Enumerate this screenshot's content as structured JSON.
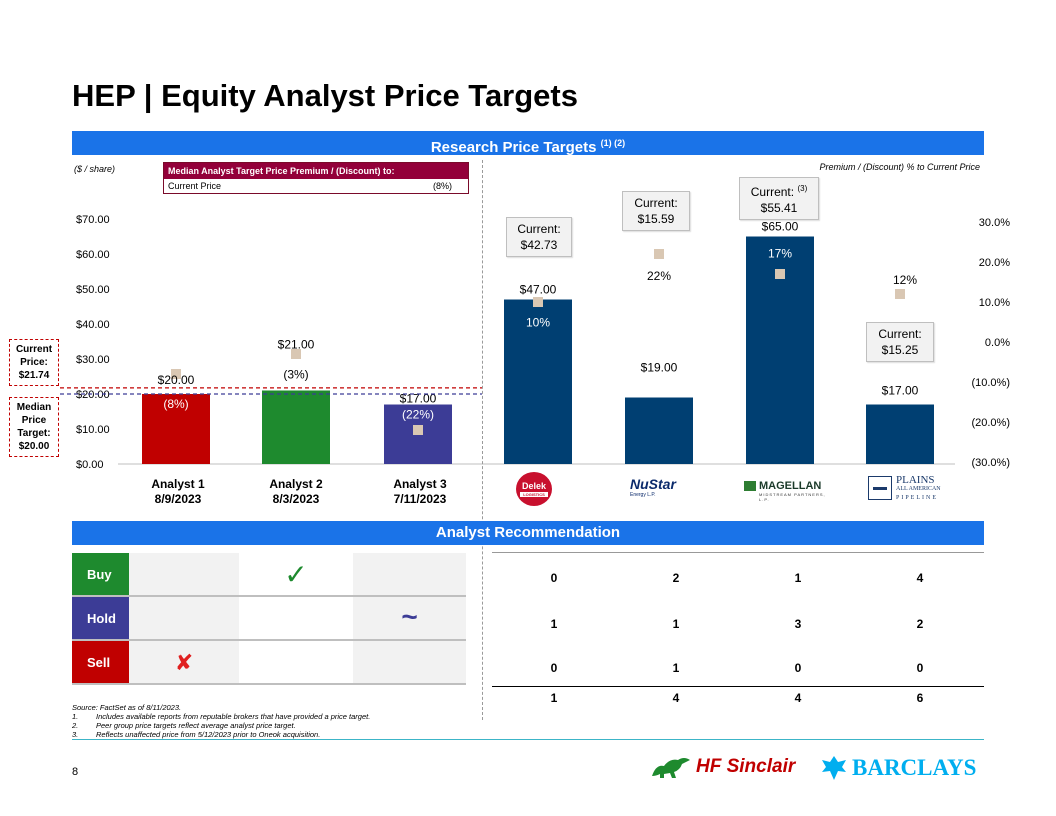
{
  "page": {
    "title": "HEP | Equity Analyst Price Targets",
    "section1_title": "Research Price Targets",
    "section1_sup": "(1) (2)",
    "section2_title": "Analyst Recommendation",
    "page_number": "8"
  },
  "chart_data": {
    "type": "bar",
    "left_axis_label": "($ / share)",
    "right_axis_label": "Premium / (Discount) % to Current Price",
    "left_ticks": [
      "$70.00",
      "$60.00",
      "$50.00",
      "$40.00",
      "$30.00",
      "$20.00",
      "$10.00",
      "$0.00"
    ],
    "right_ticks": [
      "30.0%",
      "20.0%",
      "10.0%",
      "0.0%",
      "(10.0%)",
      "(20.0%)",
      "(30.0%)"
    ],
    "ylim": [
      0,
      70
    ],
    "y2lim": [
      -30,
      30
    ],
    "analysts": [
      {
        "name": "Analyst 1",
        "date": "8/9/2023",
        "value": 20,
        "value_label": "$20.00",
        "premium": -8,
        "premium_label": "(8%)",
        "color": "#c00000"
      },
      {
        "name": "Analyst 2",
        "date": "8/3/2023",
        "value": 21,
        "value_label": "$21.00",
        "premium": -3,
        "premium_label": "(3%)",
        "color": "#1e8a2e"
      },
      {
        "name": "Analyst 3",
        "date": "7/11/2023",
        "value": 17,
        "value_label": "$17.00",
        "premium": -22,
        "premium_label": "(22%)",
        "color": "#3c3c96"
      }
    ],
    "peers": [
      {
        "logo": "Delek",
        "logo_sub": "LOGISTICS",
        "value": 47,
        "value_label": "$47.00",
        "premium": 10,
        "premium_label": "10%",
        "current_label": "Current:",
        "current_price": "$42.73",
        "sup": ""
      },
      {
        "logo": "NuStar",
        "logo_sub": "Energy L.P.",
        "value": 19,
        "value_label": "$19.00",
        "premium": 22,
        "premium_label": "22%",
        "current_label": "Current:",
        "current_price": "$15.59",
        "sup": ""
      },
      {
        "logo": "MAGELLAN",
        "logo_sub": "MIDSTREAM PARTNERS, L.P.",
        "value": 65,
        "value_label": "$65.00",
        "premium": 17,
        "premium_label": "17%",
        "current_label": "Current:",
        "current_price": "$55.41",
        "sup": "(3)"
      },
      {
        "logo": "PLAINS",
        "logo_sub": "ALL AMERICAN",
        "logo_sub2": "PIPELINE",
        "value": 17,
        "value_label": "$17.00",
        "premium": 12,
        "premium_label": "12%",
        "current_label": "Current:",
        "current_price": "$15.25",
        "sup": ""
      }
    ],
    "current_price_line": 21.74,
    "median_line": 20.0,
    "bar_color_peers": "#003f72",
    "marker_color": "#d9c7b3"
  },
  "median_box": {
    "header": "Median Analyst Target Price Premium / (Discount) to:",
    "row_label": "Current Price",
    "row_value": "(8%)"
  },
  "side": {
    "current_label": "Current Price:",
    "current_value": "$21.74",
    "median_label": "Median Price Target:",
    "median_value": "$20.00"
  },
  "recommendation": {
    "labels": [
      {
        "label": "Buy",
        "color": "#1e8a2e"
      },
      {
        "label": "Hold",
        "color": "#3c3c96"
      },
      {
        "label": "Sell",
        "color": "#c00000"
      }
    ],
    "buy_mark": "✓",
    "hold_mark": "~",
    "sell_mark": "✘",
    "peer_counts": [
      [
        "0",
        "2",
        "1",
        "4"
      ],
      [
        "1",
        "1",
        "3",
        "2"
      ],
      [
        "0",
        "1",
        "0",
        "0"
      ],
      [
        "1",
        "4",
        "4",
        "6"
      ]
    ]
  },
  "footnotes": {
    "source": "Source: FactSet as of 8/11/2023.",
    "notes": [
      {
        "num": "1.",
        "text": "Includes available reports from reputable brokers that have provided a price target."
      },
      {
        "num": "2.",
        "text": "Peer group price targets reflect average analyst price target."
      },
      {
        "num": "3.",
        "text": "Reflects unaffected price from 5/12/2023 prior to Oneok acquisition."
      }
    ]
  },
  "logos": {
    "hf": "HF Sinclair",
    "barclays": "BARCLAYS"
  }
}
